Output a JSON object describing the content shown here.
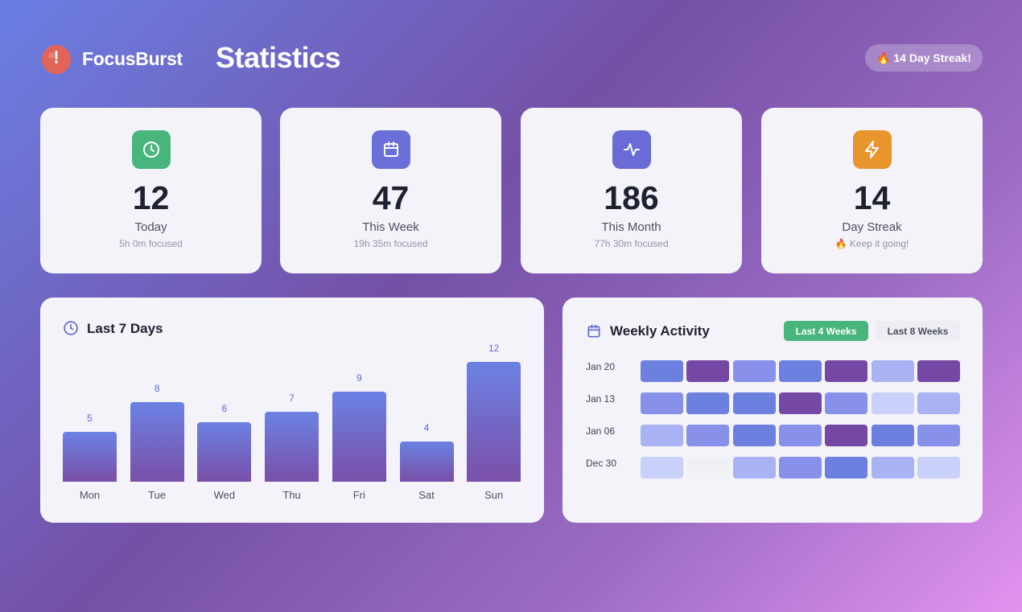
{
  "app": {
    "name": "FocusBurst",
    "page_title": "Statistics",
    "streak_badge": "🔥 14 Day Streak!"
  },
  "stats": [
    {
      "id": "today",
      "value": "12",
      "label": "Today",
      "sub": "5h 0m focused",
      "icon": "clock-icon",
      "color": "#48b57c"
    },
    {
      "id": "week",
      "value": "47",
      "label": "This Week",
      "sub": "19h 35m focused",
      "icon": "calendar-icon",
      "color": "#6a70d8"
    },
    {
      "id": "month",
      "value": "186",
      "label": "This Month",
      "sub": "77h 30m focused",
      "icon": "activity-icon",
      "color": "#6a6bd6"
    },
    {
      "id": "streak",
      "value": "14",
      "label": "Day Streak",
      "sub": "🔥 Keep it going!",
      "icon": "lightning-icon",
      "color": "#e8952e"
    }
  ],
  "last7": {
    "title": "Last 7 Days",
    "chart_data": {
      "type": "bar",
      "title": "Last 7 Days",
      "categories": [
        "Mon",
        "Tue",
        "Wed",
        "Thu",
        "Fri",
        "Sat",
        "Sun"
      ],
      "values": [
        5,
        8,
        6,
        7,
        9,
        4,
        12
      ],
      "value_labels": [
        "5",
        "8",
        "6",
        "7",
        "9",
        "4",
        "12"
      ],
      "ylim": [
        0,
        12
      ]
    }
  },
  "weekly": {
    "title": "Weekly Activity",
    "tabs": [
      "Last 4 Weeks",
      "Last 8 Weeks"
    ],
    "active_tab": "Last 4 Weeks",
    "weeks": [
      {
        "label": "Jan 20",
        "levels": [
          3,
          4,
          2,
          3,
          4,
          1,
          4
        ]
      },
      {
        "label": "Jan 13",
        "levels": [
          2,
          3,
          3,
          4,
          2,
          0.5,
          1
        ]
      },
      {
        "label": "Jan 06",
        "levels": [
          1,
          2,
          3,
          2,
          4,
          3,
          2
        ]
      },
      {
        "label": "Dec 30",
        "levels": [
          0.5,
          0,
          1,
          2,
          3,
          1,
          0.5
        ]
      }
    ],
    "level_colors": [
      "#eff1f5",
      "#c9d0fa",
      "#a9b2f2",
      "#8891ea",
      "#6c80e0",
      "#7448a4"
    ]
  }
}
